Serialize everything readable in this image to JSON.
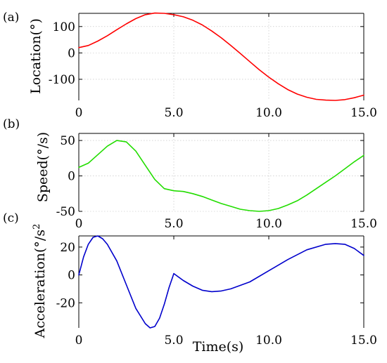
{
  "figure": {
    "xlabel": "Time(s)"
  },
  "chart_data": [
    {
      "type": "line",
      "panel": "(a)",
      "ylabel": "Location(°)",
      "xlabel": "",
      "xlim": [
        0,
        15
      ],
      "ylim": [
        -180,
        150
      ],
      "xticks": [
        0,
        5,
        10,
        15
      ],
      "xtick_labels": [
        "0",
        "5.0",
        "10.0",
        "15.0"
      ],
      "yticks": [
        100,
        0,
        -100
      ],
      "ytick_labels": [
        "100",
        "0",
        "-100"
      ],
      "grid": true,
      "color": "#ff0000",
      "series": [
        {
          "x": [
            0,
            0.5,
            1,
            1.5,
            2,
            2.5,
            3,
            3.5,
            4,
            4.5,
            5,
            5.5,
            6,
            6.5,
            7,
            7.5,
            8,
            8.5,
            9,
            9.5,
            10,
            10.5,
            11,
            11.5,
            12,
            12.5,
            13,
            13.5,
            14,
            14.5,
            15
          ],
          "values": [
            20,
            28,
            45,
            65,
            88,
            110,
            130,
            145,
            151,
            150,
            145,
            137,
            124,
            106,
            83,
            57,
            28,
            -2,
            -33,
            -64,
            -92,
            -117,
            -139,
            -156,
            -168,
            -176,
            -179,
            -180,
            -177,
            -170,
            -160
          ]
        }
      ]
    },
    {
      "type": "line",
      "panel": "(b)",
      "ylabel": "Speed(°/s)",
      "xlabel": "",
      "xlim": [
        0,
        15
      ],
      "ylim": [
        -50,
        60
      ],
      "xticks": [
        0,
        5,
        10,
        15
      ],
      "xtick_labels": [
        "0",
        "5.0",
        "10.0",
        "15.0"
      ],
      "yticks": [
        50,
        0,
        -50
      ],
      "ytick_labels": [
        "50",
        "0",
        "-50"
      ],
      "grid": true,
      "color": "#22dd00",
      "series": [
        {
          "x": [
            0,
            0.5,
            1,
            1.5,
            2,
            2.5,
            3,
            3.5,
            4,
            4.5,
            5,
            5.5,
            6,
            6.5,
            7,
            7.5,
            8,
            8.5,
            9,
            9.5,
            10,
            10.5,
            11,
            11.5,
            12,
            12.5,
            13,
            13.5,
            14,
            14.5,
            15
          ],
          "values": [
            12,
            18,
            30,
            42,
            50,
            48,
            35,
            15,
            -5,
            -18,
            -21,
            -22,
            -25,
            -29,
            -34,
            -39,
            -43,
            -47,
            -49,
            -50,
            -49,
            -46,
            -41,
            -35,
            -27,
            -18,
            -9,
            0,
            10,
            20,
            29
          ]
        }
      ]
    },
    {
      "type": "line",
      "panel": "(c)",
      "ylabel": "Acceleration(°/s",
      "ylabel_sup": "2",
      "xlabel": "",
      "xlim": [
        0,
        15
      ],
      "ylim": [
        -38,
        28
      ],
      "xticks": [
        0,
        5,
        10,
        15
      ],
      "xtick_labels": [
        "0",
        "5.0",
        "10.0",
        "15.0"
      ],
      "yticks": [
        20,
        0,
        -20
      ],
      "ytick_labels": [
        "20",
        "0",
        "-20"
      ],
      "grid": false,
      "color": "#0000cc",
      "series": [
        {
          "x": [
            0,
            0.25,
            0.5,
            0.75,
            1,
            1.25,
            1.5,
            2,
            2.5,
            3,
            3.5,
            3.75,
            4,
            4.25,
            4.5,
            4.75,
            4.95,
            5,
            5.5,
            6,
            6.5,
            7,
            7.5,
            8,
            9,
            10,
            11,
            12,
            13,
            13.5,
            14,
            14.5,
            15
          ],
          "values": [
            0,
            13,
            22,
            27,
            28,
            26,
            22,
            10,
            -7,
            -24,
            -35,
            -38,
            -37,
            -31,
            -21,
            -9,
            -1,
            1,
            -4,
            -8,
            -11,
            -12,
            -11.5,
            -10,
            -5,
            3,
            11,
            18,
            22,
            22.5,
            22,
            19,
            14
          ]
        }
      ]
    }
  ]
}
